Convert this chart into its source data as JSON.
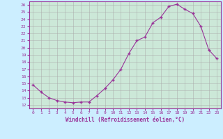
{
  "x": [
    0,
    1,
    2,
    3,
    4,
    5,
    6,
    7,
    8,
    9,
    10,
    11,
    12,
    13,
    14,
    15,
    16,
    17,
    18,
    19,
    20,
    21,
    22,
    23
  ],
  "y": [
    14.8,
    13.8,
    13.0,
    12.6,
    12.4,
    12.3,
    12.4,
    12.4,
    13.3,
    14.3,
    15.5,
    17.0,
    19.2,
    21.0,
    21.5,
    23.5,
    24.3,
    25.8,
    26.1,
    25.4,
    24.8,
    23.0,
    19.7,
    18.5
  ],
  "xlabel": "Windchill (Refroidissement éolien,°C)",
  "xlim": [
    -0.5,
    23.5
  ],
  "ylim": [
    11.5,
    26.5
  ],
  "yticks": [
    12,
    13,
    14,
    15,
    16,
    17,
    18,
    19,
    20,
    21,
    22,
    23,
    24,
    25,
    26
  ],
  "xticks": [
    0,
    1,
    2,
    3,
    4,
    5,
    6,
    7,
    8,
    9,
    10,
    11,
    12,
    13,
    14,
    15,
    16,
    17,
    18,
    19,
    20,
    21,
    22,
    23
  ],
  "line_color": "#993399",
  "marker": "+",
  "bg_color": "#cceeff",
  "plot_bg_color": "#cce8d8",
  "grid_color": "#aaaaaa",
  "font_color": "#993399",
  "font_family": "monospace"
}
